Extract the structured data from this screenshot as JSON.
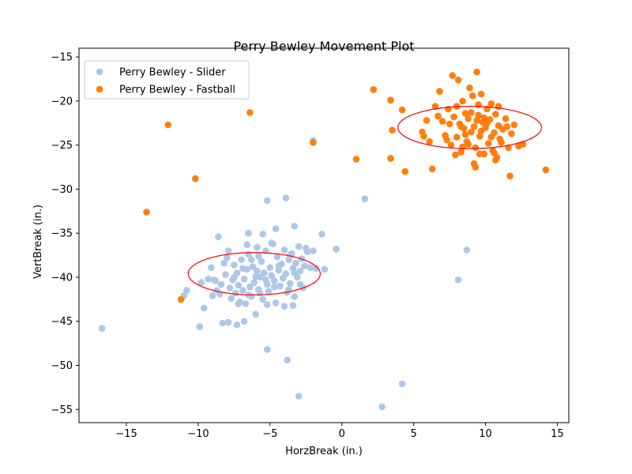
{
  "chart_data": {
    "type": "scatter",
    "title": "Perry Bewley Movement Plot",
    "xlabel": "HorzBreak (in.)",
    "ylabel": "VertBreak (in.)",
    "xlim": [
      -18.3,
      15.8
    ],
    "ylim": [
      -56.5,
      -14.0
    ],
    "xticks": [
      -15,
      -10,
      -5,
      0,
      5,
      10,
      15
    ],
    "yticks": [
      -15,
      -20,
      -25,
      -30,
      -35,
      -40,
      -45,
      -50,
      -55
    ],
    "grid": false,
    "legend_position": "top-left",
    "series": [
      {
        "name": "Perry Bewley - Slider",
        "color": "#aec7e8",
        "points": [
          [
            -16.7,
            -45.8
          ],
          [
            -11.0,
            -42.1
          ],
          [
            -10.8,
            -41.5
          ],
          [
            -9.9,
            -45.6
          ],
          [
            -9.8,
            -40.6
          ],
          [
            -9.6,
            -43.5
          ],
          [
            -9.3,
            -40.2
          ],
          [
            -9.0,
            -42.1
          ],
          [
            -8.9,
            -40.3
          ],
          [
            -8.7,
            -41.5
          ],
          [
            -8.5,
            -41.9
          ],
          [
            -8.4,
            -40.8
          ],
          [
            -8.3,
            -45.2
          ],
          [
            -8.2,
            -38.4
          ],
          [
            -8.0,
            -37.8
          ],
          [
            -8.1,
            -39.7
          ],
          [
            -7.9,
            -45.1
          ],
          [
            -7.8,
            -41.2
          ],
          [
            -7.7,
            -42.4
          ],
          [
            -7.6,
            -40.3
          ],
          [
            -7.5,
            -38.6
          ],
          [
            -7.4,
            -41.8
          ],
          [
            -7.3,
            -39.5
          ],
          [
            -7.2,
            -40.9
          ],
          [
            -7.1,
            -42.8
          ],
          [
            -7.0,
            -38.0
          ],
          [
            -6.9,
            -41.5
          ],
          [
            -6.8,
            -40.2
          ],
          [
            -6.7,
            -43.0
          ],
          [
            -6.6,
            -39.1
          ],
          [
            -6.5,
            -37.4
          ],
          [
            -6.4,
            -41.1
          ],
          [
            -6.3,
            -42.2
          ],
          [
            -6.2,
            -38.8
          ],
          [
            -6.1,
            -40.6
          ],
          [
            -6.0,
            -39.9
          ],
          [
            -5.9,
            -36.6
          ],
          [
            -5.8,
            -41.4
          ],
          [
            -5.7,
            -40.0
          ],
          [
            -5.6,
            -38.2
          ],
          [
            -5.5,
            -42.5
          ],
          [
            -5.4,
            -39.5
          ],
          [
            -5.3,
            -37.0
          ],
          [
            -5.2,
            -40.8
          ],
          [
            -5.1,
            -41.6
          ],
          [
            -5.0,
            -38.9
          ],
          [
            -4.9,
            -39.8
          ],
          [
            -4.8,
            -36.2
          ],
          [
            -4.7,
            -40.4
          ],
          [
            -4.6,
            -42.9
          ],
          [
            -4.5,
            -37.7
          ],
          [
            -4.4,
            -39.2
          ],
          [
            -4.3,
            -41.0
          ],
          [
            -4.2,
            -38.5
          ],
          [
            -4.1,
            -40.1
          ],
          [
            -4.0,
            -36.9
          ],
          [
            -3.9,
            -39.6
          ],
          [
            -3.8,
            -41.7
          ],
          [
            -3.7,
            -38.0
          ],
          [
            -3.6,
            -40.7
          ],
          [
            -3.5,
            -37.3
          ],
          [
            -3.4,
            -39.0
          ],
          [
            -3.3,
            -42.2
          ],
          [
            -3.2,
            -38.4
          ],
          [
            -3.1,
            -40.0
          ],
          [
            -3.0,
            -36.5
          ],
          [
            -2.9,
            -39.3
          ],
          [
            -2.8,
            -37.9
          ],
          [
            -2.7,
            -41.2
          ],
          [
            -2.6,
            -38.7
          ],
          [
            -2.4,
            -37.1
          ],
          [
            -2.2,
            -38.9
          ],
          [
            -2.0,
            -37.0
          ],
          [
            -1.8,
            -39.0
          ],
          [
            -1.4,
            -35.1
          ],
          [
            -1.2,
            -39.1
          ],
          [
            -0.4,
            -36.8
          ],
          [
            -8.6,
            -35.4
          ],
          [
            -6.5,
            -35.0
          ],
          [
            -5.5,
            -35.1
          ],
          [
            -4.6,
            -34.5
          ],
          [
            -3.3,
            -34.2
          ],
          [
            -3.9,
            -31.0
          ],
          [
            -5.2,
            -31.3
          ],
          [
            -2.0,
            -24.5
          ],
          [
            1.6,
            -31.1
          ],
          [
            -7.3,
            -45.4
          ],
          [
            -6.8,
            -45.0
          ],
          [
            -3.4,
            -43.2
          ],
          [
            -5.2,
            -43.1
          ],
          [
            -4.0,
            -43.3
          ],
          [
            -5.2,
            -48.2
          ],
          [
            -3.8,
            -49.4
          ],
          [
            -3.0,
            -53.5
          ],
          [
            4.2,
            -52.1
          ],
          [
            2.8,
            -54.7
          ],
          [
            8.7,
            -36.9
          ],
          [
            8.1,
            -40.3
          ],
          [
            -7.2,
            -43.0
          ],
          [
            -6.0,
            -44.2
          ],
          [
            -8.8,
            -40.4
          ],
          [
            -9.1,
            -38.9
          ],
          [
            -7.9,
            -37.0
          ],
          [
            -6.6,
            -36.3
          ],
          [
            -5.8,
            -37.6
          ],
          [
            -4.9,
            -36.1
          ],
          [
            -3.6,
            -37.5
          ],
          [
            -2.5,
            -36.7
          ],
          [
            -2.9,
            -40.8
          ],
          [
            -3.7,
            -41.4
          ],
          [
            -6.3,
            -38.0
          ],
          [
            -5.3,
            -40.3
          ],
          [
            -4.4,
            -38.7
          ],
          [
            -5.9,
            -39.3
          ],
          [
            -6.9,
            -39.0
          ],
          [
            -7.5,
            -40.0
          ],
          [
            -4.7,
            -41.1
          ],
          [
            -5.7,
            -41.8
          ],
          [
            -6.5,
            -42.0
          ],
          [
            -3.3,
            -39.5
          ]
        ]
      },
      {
        "name": "Perry Bewley - Fastball",
        "color": "#ff7f0e",
        "points": [
          [
            -13.6,
            -32.6
          ],
          [
            -12.1,
            -22.7
          ],
          [
            -11.2,
            -42.5
          ],
          [
            -10.2,
            -28.8
          ],
          [
            -6.4,
            -21.3
          ],
          [
            -2.0,
            -24.7
          ],
          [
            1.0,
            -26.6
          ],
          [
            2.2,
            -18.7
          ],
          [
            3.4,
            -19.9
          ],
          [
            3.5,
            -23.3
          ],
          [
            3.4,
            -26.5
          ],
          [
            4.2,
            -21.0
          ],
          [
            4.4,
            -28.0
          ],
          [
            5.6,
            -23.5
          ],
          [
            5.9,
            -22.2
          ],
          [
            6.1,
            -24.6
          ],
          [
            6.3,
            -27.7
          ],
          [
            6.5,
            -20.6
          ],
          [
            6.8,
            -18.9
          ],
          [
            7.0,
            -22.3
          ],
          [
            7.2,
            -23.9
          ],
          [
            7.4,
            -20.9
          ],
          [
            7.6,
            -25.0
          ],
          [
            7.7,
            -17.1
          ],
          [
            7.8,
            -21.8
          ],
          [
            8.0,
            -24.1
          ],
          [
            8.1,
            -17.6
          ],
          [
            8.2,
            -22.6
          ],
          [
            8.3,
            -25.8
          ],
          [
            8.4,
            -20.0
          ],
          [
            8.5,
            -23.1
          ],
          [
            8.6,
            -21.4
          ],
          [
            8.7,
            -24.6
          ],
          [
            8.8,
            -22.0
          ],
          [
            8.9,
            -18.5
          ],
          [
            9.0,
            -23.5
          ],
          [
            9.1,
            -19.4
          ],
          [
            9.2,
            -22.9
          ],
          [
            9.3,
            -25.3
          ],
          [
            9.4,
            -16.7
          ],
          [
            9.5,
            -21.6
          ],
          [
            9.6,
            -24.0
          ],
          [
            9.7,
            -19.2
          ],
          [
            9.8,
            -22.4
          ],
          [
            9.9,
            -26.0
          ],
          [
            10.0,
            -23.0
          ],
          [
            10.1,
            -20.9
          ],
          [
            10.2,
            -24.8
          ],
          [
            10.3,
            -22.1
          ],
          [
            10.4,
            -20.3
          ],
          [
            10.5,
            -25.6
          ],
          [
            10.6,
            -23.6
          ],
          [
            10.7,
            -21.5
          ],
          [
            10.8,
            -26.4
          ],
          [
            10.9,
            -22.8
          ],
          [
            11.0,
            -24.3
          ],
          [
            11.2,
            -23.2
          ],
          [
            11.4,
            -22.0
          ],
          [
            11.6,
            -25.3
          ],
          [
            11.8,
            -23.7
          ],
          [
            12.0,
            -22.7
          ],
          [
            12.3,
            -25.1
          ],
          [
            12.6,
            -24.9
          ],
          [
            11.7,
            -28.5
          ],
          [
            14.2,
            -27.8
          ],
          [
            9.3,
            -27.5
          ],
          [
            9.2,
            -27.1
          ],
          [
            10.7,
            -26.7
          ],
          [
            7.9,
            -26.1
          ],
          [
            5.7,
            -24.0
          ],
          [
            8.6,
            -23.8
          ],
          [
            9.0,
            -21.3
          ],
          [
            8.3,
            -22.9
          ],
          [
            9.7,
            -23.4
          ],
          [
            10.1,
            -22.5
          ],
          [
            8.8,
            -24.9
          ],
          [
            9.5,
            -20.4
          ],
          [
            10.4,
            -24.1
          ],
          [
            7.5,
            -22.6
          ],
          [
            8.0,
            -20.6
          ],
          [
            9.9,
            -21.9
          ],
          [
            10.9,
            -20.6
          ],
          [
            11.1,
            -24.7
          ],
          [
            9.6,
            -26.0
          ],
          [
            8.4,
            -25.2
          ],
          [
            7.3,
            -24.4
          ],
          [
            6.7,
            -21.7
          ],
          [
            10.6,
            -25.9
          ],
          [
            11.5,
            -22.9
          ],
          [
            9.4,
            -22.2
          ]
        ]
      },
      {
        "name": "",
        "type": "ellipse",
        "color": "#ff0000",
        "center": [
          -6.1,
          -39.6
        ],
        "semi_axes": [
          4.6,
          2.4
        ]
      },
      {
        "name": "",
        "type": "ellipse",
        "color": "#ff0000",
        "center": [
          8.9,
          -23.0
        ],
        "semi_axes": [
          5.0,
          2.4
        ]
      }
    ]
  }
}
